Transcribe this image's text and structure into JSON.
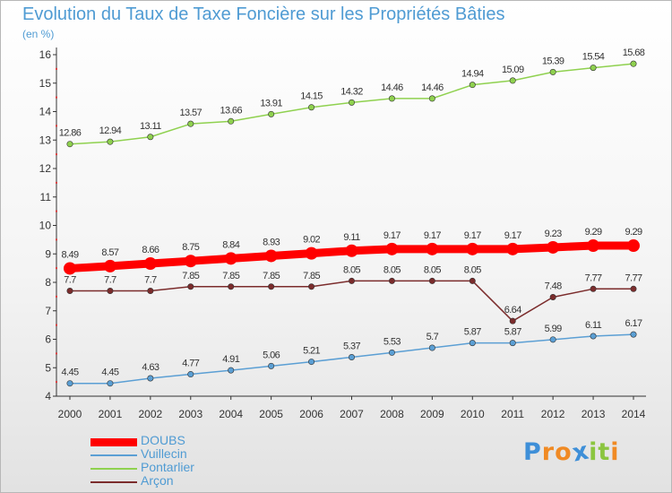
{
  "chart_data": {
    "type": "line",
    "title": "Evolution du Taux de Taxe Foncière sur les Propriétés Bâties",
    "ylabel": "(en %)",
    "xlabel": "",
    "categories": [
      "2000",
      "2001",
      "2002",
      "2003",
      "2004",
      "2005",
      "2006",
      "2007",
      "2008",
      "2009",
      "2010",
      "2011",
      "2012",
      "2013",
      "2014"
    ],
    "ylim": [
      4,
      16
    ],
    "yticks": [
      4,
      5,
      6,
      7,
      8,
      9,
      10,
      11,
      12,
      13,
      14,
      15,
      16
    ],
    "grid": false,
    "legend_position": "bottom-left",
    "series": [
      {
        "name": "DOUBS",
        "color": "#ff0000",
        "emphasis": true,
        "values": [
          8.49,
          8.57,
          8.66,
          8.75,
          8.84,
          8.93,
          9.02,
          9.11,
          9.17,
          9.17,
          9.17,
          9.17,
          9.23,
          9.29,
          9.29
        ],
        "labels": [
          "8.49",
          "8.57",
          "8.66",
          "8.75",
          "8.84",
          "8.93",
          "9.02",
          "9.11",
          "9.17",
          "9.17",
          "9.17",
          "9.17",
          "9.23",
          "9.29",
          "9.29"
        ]
      },
      {
        "name": "Vuillecin",
        "color": "#5b9fd4",
        "values": [
          4.45,
          4.45,
          4.63,
          4.77,
          4.91,
          5.06,
          5.21,
          5.37,
          5.53,
          5.7,
          5.87,
          5.87,
          5.99,
          6.11,
          6.17
        ],
        "labels": [
          "4.45",
          "4.45",
          "4.63",
          "4.77",
          "4.91",
          "5.06",
          "5.21",
          "5.37",
          "5.53",
          "5.7",
          "5.87",
          "5.87",
          "5.99",
          "6.11",
          "6.17"
        ]
      },
      {
        "name": "Pontarlier",
        "color": "#8fd14f",
        "values": [
          12.86,
          12.94,
          13.11,
          13.57,
          13.66,
          13.91,
          14.15,
          14.32,
          14.46,
          14.46,
          14.94,
          15.09,
          15.39,
          15.54,
          15.68
        ],
        "labels": [
          "12.86",
          "12.94",
          "13.11",
          "13.57",
          "13.66",
          "13.91",
          "14.15",
          "14.32",
          "14.46",
          "14.46",
          "14.94",
          "15.09",
          "15.39",
          "15.54",
          "15.68"
        ]
      },
      {
        "name": "Arçon",
        "color": "#7b2c2c",
        "values": [
          7.7,
          7.7,
          7.7,
          7.85,
          7.85,
          7.85,
          7.85,
          8.05,
          8.05,
          8.05,
          8.05,
          6.64,
          7.48,
          7.77,
          7.77
        ],
        "labels": [
          "7.7",
          "7.7",
          "7.7",
          "7.85",
          "7.85",
          "7.85",
          "7.85",
          "8.05",
          "8.05",
          "8.05",
          "8.05",
          "6.64",
          "7.48",
          "7.77",
          "7.77"
        ]
      }
    ]
  },
  "brand": {
    "letters": [
      "P",
      "r",
      "o",
      "x",
      "i",
      "t",
      "i"
    ],
    "colors": [
      "#3e8fd8",
      "#f08a24",
      "#f08a24",
      "#3e8fd8",
      "#8bc53f",
      "#8bc53f",
      "#f08a24"
    ]
  }
}
